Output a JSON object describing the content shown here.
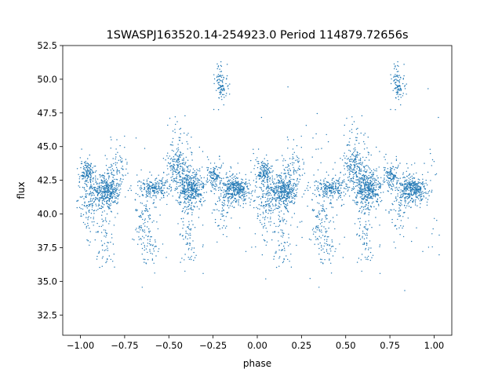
{
  "chart_data": {
    "type": "scatter",
    "title": "1SWASPJ163520.14-254923.0 Period 114879.72656s",
    "xlabel": "phase",
    "ylabel": "flux",
    "xlim": [
      -1.1,
      1.1
    ],
    "ylim": [
      31.0,
      52.5
    ],
    "xticks": [
      -1.0,
      -0.75,
      -0.5,
      -0.25,
      0.0,
      0.25,
      0.5,
      0.75,
      1.0
    ],
    "xtick_labels": [
      "−1.00",
      "−0.75",
      "−0.50",
      "−0.25",
      "0.00",
      "0.25",
      "0.50",
      "0.75",
      "1.00"
    ],
    "yticks": [
      32.5,
      35.0,
      37.5,
      40.0,
      42.5,
      45.0,
      47.5,
      50.0,
      52.5
    ],
    "ytick_labels": [
      "32.5",
      "35.0",
      "37.5",
      "40.0",
      "42.5",
      "45.0",
      "47.5",
      "50.0",
      "52.5"
    ],
    "grid": false,
    "marker_color": "#1f77b4",
    "series": [
      {
        "period_in_phase": 1.0,
        "clusters": [
          {
            "x": -0.965,
            "y": 43.1,
            "sx": 0.02,
            "sy": 0.45,
            "n": 130
          },
          {
            "x": -0.955,
            "y": 40.8,
            "sx": 0.03,
            "sy": 1.2,
            "n": 110
          },
          {
            "x": -0.855,
            "y": 41.7,
            "sx": 0.04,
            "sy": 0.7,
            "n": 420
          },
          {
            "x": -0.865,
            "y": 38.4,
            "sx": 0.03,
            "sy": 1.2,
            "n": 70
          },
          {
            "x": -0.78,
            "y": 43.5,
            "sx": 0.03,
            "sy": 0.8,
            "n": 60
          },
          {
            "x": -0.64,
            "y": 39.6,
            "sx": 0.03,
            "sy": 1.0,
            "n": 80
          },
          {
            "x": -0.61,
            "y": 37.5,
            "sx": 0.03,
            "sy": 1.0,
            "n": 50
          },
          {
            "x": -0.58,
            "y": 41.9,
            "sx": 0.05,
            "sy": 0.4,
            "n": 220
          },
          {
            "x": -0.455,
            "y": 43.6,
            "sx": 0.03,
            "sy": 0.6,
            "n": 130
          },
          {
            "x": -0.375,
            "y": 41.9,
            "sx": 0.04,
            "sy": 0.7,
            "n": 420
          },
          {
            "x": -0.39,
            "y": 38.8,
            "sx": 0.025,
            "sy": 1.4,
            "n": 80
          },
          {
            "x": -0.42,
            "y": 45.0,
            "sx": 0.04,
            "sy": 1.0,
            "n": 50
          },
          {
            "x": -0.205,
            "y": 49.7,
            "sx": 0.018,
            "sy": 0.7,
            "n": 100
          },
          {
            "x": -0.24,
            "y": 42.9,
            "sx": 0.02,
            "sy": 0.5,
            "n": 110
          },
          {
            "x": -0.125,
            "y": 41.8,
            "sx": 0.04,
            "sy": 0.45,
            "n": 380
          },
          {
            "x": -0.2,
            "y": 40.2,
            "sx": 0.03,
            "sy": 0.9,
            "n": 60
          },
          {
            "x": 0.0,
            "y": 42.0,
            "sx": 0.5,
            "sy": 3.0,
            "n": 180
          }
        ]
      }
    ]
  }
}
